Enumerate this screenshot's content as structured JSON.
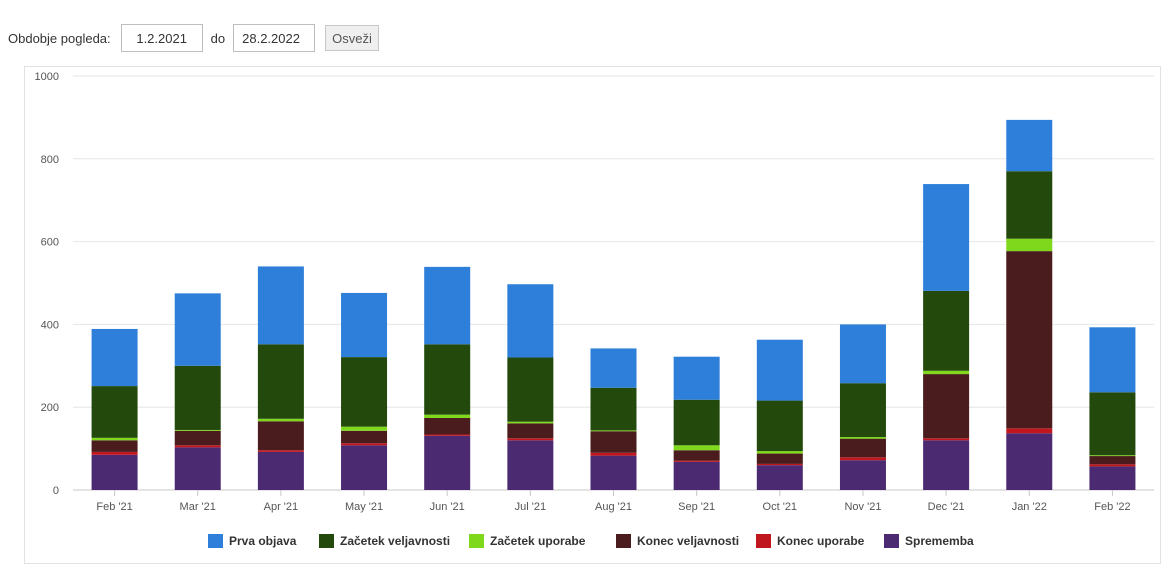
{
  "controls": {
    "period_label": "Obdobje pogleda:",
    "date_from": "1.2.2021",
    "separator": "do",
    "date_to": "28.2.2022",
    "refresh_label": "Osveži"
  },
  "chart_data": {
    "type": "bar",
    "stacked": true,
    "title": "",
    "xlabel": "",
    "ylabel": "",
    "ylim": [
      0,
      1000
    ],
    "yticks": [
      0,
      200,
      400,
      600,
      800,
      1000
    ],
    "grid": true,
    "legend_position": "bottom",
    "categories": [
      "Feb '21",
      "Mar '21",
      "Apr '21",
      "May '21",
      "Jun '21",
      "Jul '21",
      "Aug '21",
      "Sep '21",
      "Oct '21",
      "Nov '21",
      "Dec '21",
      "Jan '22",
      "Feb '22"
    ],
    "series": [
      {
        "name": "Sprememba",
        "color": "#4b2a72",
        "values": [
          85,
          103,
          92,
          108,
          131,
          120,
          83,
          68,
          60,
          72,
          120,
          137,
          57
        ]
      },
      {
        "name": "Konec uporabe",
        "color": "#c0161e",
        "values": [
          7,
          5,
          4,
          5,
          3,
          5,
          7,
          3,
          3,
          7,
          5,
          12,
          5
        ]
      },
      {
        "name": "Konec veljavnosti",
        "color": "#4a1c1d",
        "values": [
          28,
          35,
          70,
          30,
          40,
          36,
          52,
          25,
          25,
          45,
          155,
          428,
          20
        ]
      },
      {
        "name": "Začetek uporabe",
        "color": "#7fd81c",
        "values": [
          6,
          2,
          6,
          10,
          8,
          4,
          2,
          12,
          6,
          4,
          8,
          30,
          2
        ]
      },
      {
        "name": "Začetek veljavnosti",
        "color": "#234a0c",
        "values": [
          125,
          155,
          180,
          168,
          170,
          155,
          103,
          110,
          122,
          130,
          193,
          163,
          152
        ]
      },
      {
        "name": "Prva objava",
        "color": "#2e7fd9",
        "values": [
          138,
          175,
          188,
          155,
          187,
          177,
          95,
          104,
          147,
          142,
          258,
          124,
          157
        ]
      }
    ],
    "legend_order": [
      "Prva objava",
      "Začetek veljavnosti",
      "Začetek uporabe",
      "Konec veljavnosti",
      "Konec uporabe",
      "Sprememba"
    ]
  }
}
